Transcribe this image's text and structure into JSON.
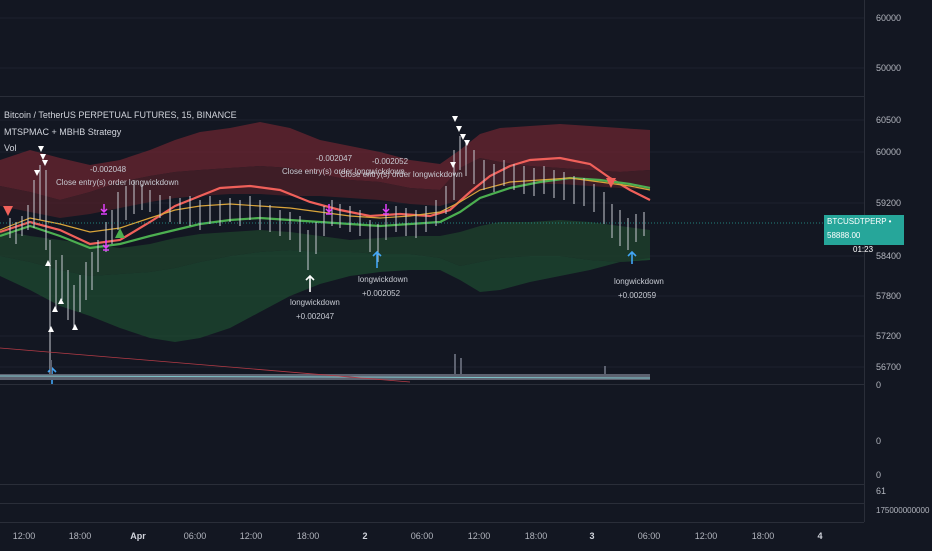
{
  "header": {
    "symbol_title": "Bitcoin / TetherUS PERPETUAL FUTURES, 15, BINANCE",
    "strategy_title": "MTSPMAC + MBHB Strategy",
    "volume_title": "Vol"
  },
  "top_pane_axis": [
    "60000",
    "50000"
  ],
  "main_axis": [
    "60500",
    "60000",
    "59200",
    "58400",
    "57800",
    "57200",
    "56700"
  ],
  "current_price": {
    "symbol": "BTCUSDTPERP",
    "price": "58888.00",
    "countdown": "01:23"
  },
  "osc_pane_axis": [
    "0",
    "0",
    "0"
  ],
  "extra_pane_axis": [
    "61",
    "175000000000"
  ],
  "time_axis": [
    "12:00",
    "18:00",
    "Apr",
    "06:00",
    "12:00",
    "18:00",
    "2",
    "06:00",
    "12:00",
    "18:00",
    "3",
    "06:00",
    "12:00",
    "18:00",
    "4"
  ],
  "annotations": [
    {
      "value": "-0.002048",
      "text": "Close entry(s) order longwickdown"
    },
    {
      "value": "-0.002047",
      "text": "Close entry(s) order longwickdown"
    },
    {
      "value": "-0.002052",
      "text": "Close entry(s) order longwickdown"
    }
  ],
  "signals": [
    {
      "text": "longwickdown",
      "value": "+0.002047"
    },
    {
      "text": "longwickdown",
      "value": "+0.002052"
    },
    {
      "text": "longwickdown",
      "value": "+0.002059"
    }
  ],
  "colors": {
    "background": "#131722",
    "upper_band": "#7b2a32",
    "lower_band": "#1e4a30",
    "red_ma": "#f0605a",
    "green_ma": "#4caf50",
    "yellow_ma": "#d9a43a",
    "candle": "#c8cbd3",
    "current_price": "#26a69a",
    "entry_marker": "#e040fb",
    "signal_arrow": "#42a5f5"
  }
}
